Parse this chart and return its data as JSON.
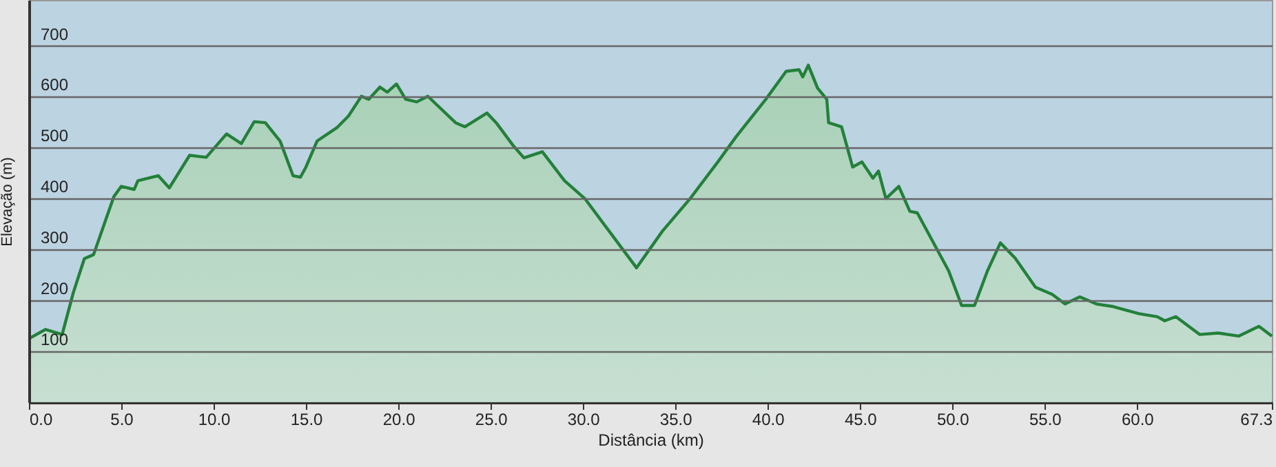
{
  "chart_data": {
    "type": "area",
    "xlabel": "Distância (km)",
    "ylabel": "Elevação (m)",
    "xlim": [
      0,
      67.3
    ],
    "ylim": [
      0,
      790
    ],
    "grid": "y",
    "xticks": [
      {
        "value": 0,
        "label": "0.0"
      },
      {
        "value": 5,
        "label": "5.0"
      },
      {
        "value": 10,
        "label": "10.0"
      },
      {
        "value": 15,
        "label": "15.0"
      },
      {
        "value": 20,
        "label": "20.0"
      },
      {
        "value": 25,
        "label": "25.0"
      },
      {
        "value": 30,
        "label": "30.0"
      },
      {
        "value": 35,
        "label": "35.0"
      },
      {
        "value": 40,
        "label": "40.0"
      },
      {
        "value": 45,
        "label": "45.0"
      },
      {
        "value": 50,
        "label": "50.0"
      },
      {
        "value": 55,
        "label": "55.0"
      },
      {
        "value": 60,
        "label": "60.0"
      },
      {
        "value": 67.3,
        "label": "67.3"
      }
    ],
    "yticks": [
      100,
      200,
      300,
      400,
      500,
      600,
      700
    ],
    "x": [
      0,
      0.9,
      1.8,
      2.4,
      3.0,
      3.5,
      4.6,
      5.0,
      5.7,
      5.9,
      7.0,
      7.6,
      8.7,
      9.6,
      10.7,
      11.5,
      12.2,
      12.8,
      13.6,
      14.3,
      14.7,
      15.0,
      15.6,
      16.7,
      17.3,
      18.0,
      18.4,
      19.0,
      19.4,
      19.9,
      20.4,
      21.0,
      21.6,
      23.1,
      23.6,
      24.8,
      25.3,
      26.2,
      26.8,
      27.8,
      29.0,
      30.1,
      31.5,
      32.9,
      34.3,
      35.8,
      37.3,
      38.3,
      39.9,
      41.0,
      41.7,
      41.9,
      42.2,
      42.7,
      43.2,
      43.3,
      44.0,
      44.6,
      45.1,
      45.7,
      46.0,
      46.4,
      47.1,
      47.7,
      48.1,
      49.8,
      50.5,
      51.2,
      51.9,
      52.6,
      53.4,
      54.5,
      55.4,
      56.1,
      56.9,
      57.8,
      58.7,
      60.1,
      61.1,
      61.5,
      62.1,
      63.4,
      64.4,
      65.5,
      66.6,
      67.3
    ],
    "series": [
      {
        "color": "#23803a",
        "values": [
          125,
          143,
          133,
          215,
          282,
          290,
          404,
          424,
          418,
          435,
          445,
          421,
          485,
          481,
          527,
          508,
          551,
          549,
          513,
          445,
          442,
          462,
          513,
          540,
          562,
          601,
          595,
          619,
          609,
          625,
          595,
          590,
          601,
          549,
          541,
          568,
          549,
          505,
          480,
          492,
          435,
          400,
          332,
          264,
          336,
          400,
          472,
          522,
          595,
          650,
          653,
          639,
          662,
          617,
          595,
          549,
          541,
          462,
          472,
          440,
          454,
          400,
          424,
          375,
          372,
          258,
          190,
          190,
          258,
          313,
          283,
          226,
          212,
          193,
          207,
          193,
          188,
          174,
          168,
          160,
          168,
          133,
          136,
          130,
          149,
          130
        ]
      }
    ]
  }
}
